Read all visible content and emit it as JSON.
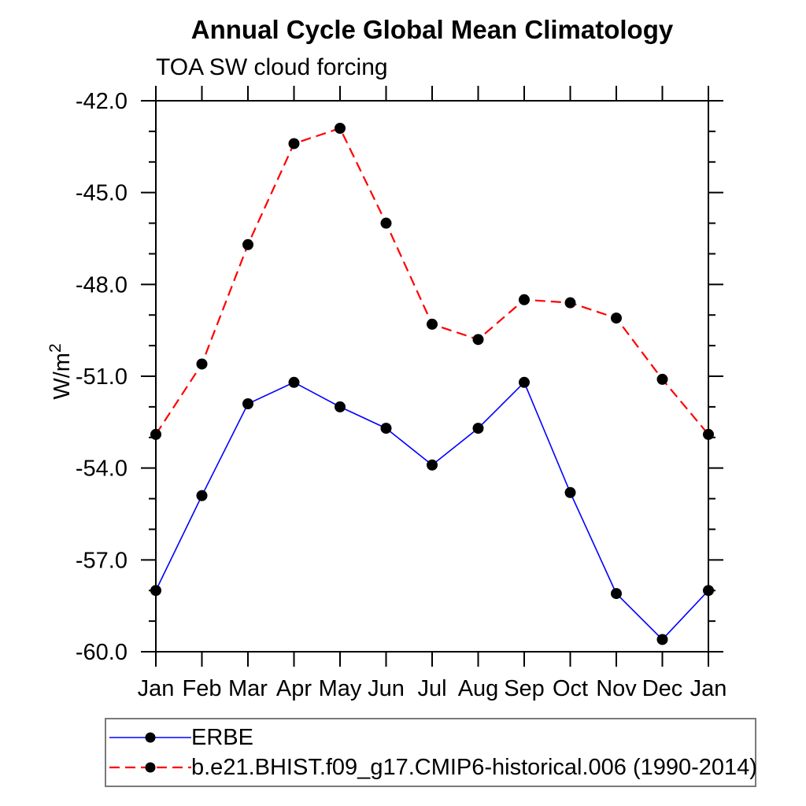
{
  "chart_data": {
    "type": "line",
    "title": "Annual Cycle Global Mean Climatology",
    "subtitle": "TOA SW cloud forcing",
    "ylabel_base": "W/m",
    "ylabel_exponent": "2",
    "x_categories": [
      "Jan",
      "Feb",
      "Mar",
      "Apr",
      "May",
      "Jun",
      "Jul",
      "Aug",
      "Sep",
      "Oct",
      "Nov",
      "Dec",
      "Jan"
    ],
    "ylim": [
      -60,
      -42
    ],
    "ytick_major_values": [
      -42,
      -45,
      -48,
      -51,
      -54,
      -57,
      -60
    ],
    "ytick_major_labels": [
      "-42.0",
      "-45.0",
      "-48.0",
      "-51.0",
      "-54.0",
      "-57.0",
      "-60.0"
    ],
    "ytick_minor_step": 1,
    "grid": false,
    "axis_color": "#000000",
    "marker_color": "#000000",
    "legend_position": "bottom-left",
    "series": [
      {
        "name": "ERBE",
        "color": "#0000ff",
        "line_style": "solid",
        "marker": "filled-circle",
        "values": [
          -58.0,
          -54.9,
          -51.9,
          -51.2,
          -52.0,
          -52.7,
          -53.9,
          -52.7,
          -51.2,
          -54.8,
          -58.1,
          -59.6,
          -58.0
        ]
      },
      {
        "name": "b.e21.BHIST.f09_g17.CMIP6-historical.006 (1990-2014)",
        "color": "#ff0000",
        "line_style": "dashed",
        "marker": "filled-circle",
        "values": [
          -52.9,
          -50.6,
          -46.7,
          -43.4,
          -42.9,
          -46.0,
          -49.3,
          -49.8,
          -48.5,
          -48.6,
          -49.1,
          -51.1,
          -52.9
        ]
      }
    ]
  }
}
